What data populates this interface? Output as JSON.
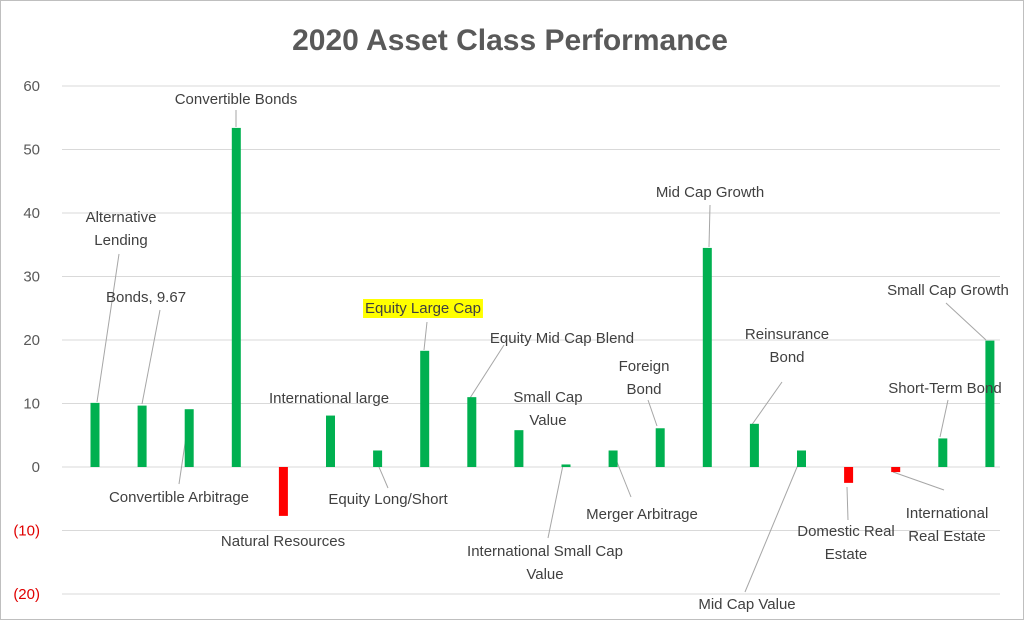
{
  "chart_data": {
    "type": "bar",
    "title": "2020 Asset Class Performance",
    "xlabel": "",
    "ylabel": "",
    "ylim": [
      -20,
      60
    ],
    "grid": true,
    "legend": "none",
    "y_ticks": [
      {
        "value": 60,
        "label": "60"
      },
      {
        "value": 50,
        "label": "50"
      },
      {
        "value": 40,
        "label": "40"
      },
      {
        "value": 30,
        "label": "30"
      },
      {
        "value": 20,
        "label": "20"
      },
      {
        "value": 10,
        "label": "10"
      },
      {
        "value": 0,
        "label": "0"
      },
      {
        "value": -10,
        "label": "(10)"
      },
      {
        "value": -20,
        "label": "(20)"
      }
    ],
    "colors": {
      "positive": "#00b050",
      "negative": "#ff0000",
      "highlight": "#ffff00",
      "negative_tick": "#e00000"
    },
    "bars": [
      {
        "category": "Alternative Lending",
        "value": 10.1,
        "label_lines": [
          "Alternative",
          "Lending"
        ]
      },
      {
        "category": "Bonds",
        "value": 9.67,
        "label_lines": [
          "Bonds,  9.67"
        ]
      },
      {
        "category": "Convertible Arbitrage",
        "value": 9.1,
        "label_lines": [
          "Convertible  Arbitrage"
        ]
      },
      {
        "category": "Convertible Bonds",
        "value": 53.4,
        "label_lines": [
          "Convertible Bonds"
        ]
      },
      {
        "category": "Natural Resources",
        "value": -7.7,
        "label_lines": [
          "Natural Resources"
        ]
      },
      {
        "category": "International large",
        "value": 8.1,
        "label_lines": [
          "International large"
        ]
      },
      {
        "category": "Equity Long/Short",
        "value": 2.6,
        "label_lines": [
          "Equity Long/Short"
        ]
      },
      {
        "category": "Equity Large Cap",
        "value": 18.3,
        "label_lines": [
          "Equity Large Cap"
        ],
        "highlight": true
      },
      {
        "category": "Equity Mid Cap Blend",
        "value": 11.0,
        "label_lines": [
          "Equity Mid Cap Blend"
        ]
      },
      {
        "category": "Small Cap Value",
        "value": 5.8,
        "label_lines": [
          "Small Cap",
          "Value"
        ]
      },
      {
        "category": "International Small Cap Value",
        "value": 0.4,
        "label_lines": [
          "International Small Cap",
          "Value"
        ]
      },
      {
        "category": "Merger Arbitrage",
        "value": 2.6,
        "label_lines": [
          "Merger Arbitrage"
        ]
      },
      {
        "category": "Foreign Bond",
        "value": 6.1,
        "label_lines": [
          "Foreign",
          "Bond"
        ]
      },
      {
        "category": "Mid Cap Growth",
        "value": 34.5,
        "label_lines": [
          "Mid Cap Growth"
        ]
      },
      {
        "category": "Reinsurance Bond",
        "value": 6.8,
        "label_lines": [
          "Reinsurance",
          "Bond"
        ]
      },
      {
        "category": "Mid Cap Value",
        "value": 2.6,
        "label_lines": [
          "Mid Cap Value"
        ]
      },
      {
        "category": "Domestic Real Estate",
        "value": -2.5,
        "label_lines": [
          "Domestic Real",
          "Estate"
        ]
      },
      {
        "category": "International Real Estate",
        "value": -0.8,
        "label_lines": [
          "International",
          "Real Estate"
        ]
      },
      {
        "category": "Short-Term Bond",
        "value": 4.5,
        "label_lines": [
          "Short-Term Bond"
        ]
      },
      {
        "category": "Small Cap Growth",
        "value": 19.9,
        "label_lines": [
          "Small Cap Growth"
        ]
      }
    ]
  }
}
